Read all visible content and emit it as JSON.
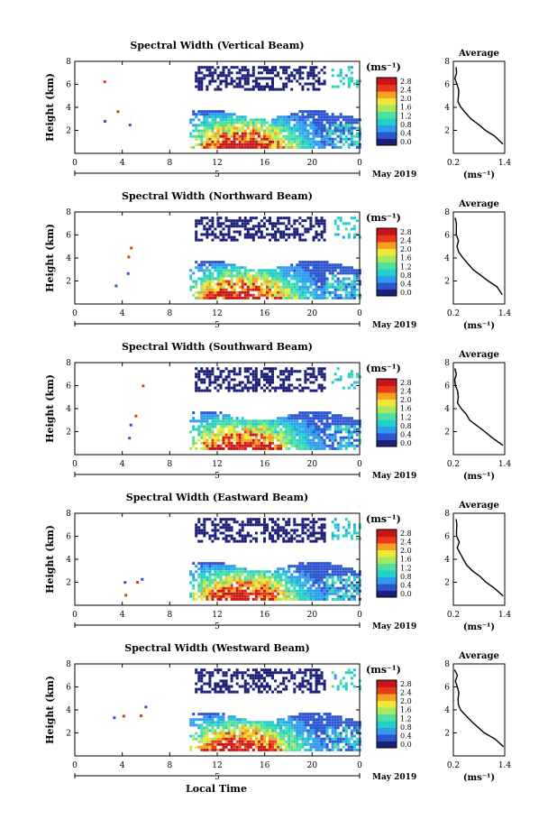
{
  "figure": {
    "date_label": "May 2019",
    "xlabel": "Local Time",
    "day_marker": "5",
    "colorbar_unit": "(ms⁻¹)",
    "colorbar_ticks": [
      "0.0",
      "0.4",
      "0.8",
      "1.2",
      "1.6",
      "2.0",
      "2.4",
      "2.8"
    ],
    "time_ticks": [
      "0",
      "4",
      "8",
      "12",
      "16",
      "20",
      "0"
    ],
    "colors": [
      "#1c1f7a",
      "#2d55d0",
      "#2f9cf0",
      "#22d0c8",
      "#4fe0a0",
      "#a8e860",
      "#f0e838",
      "#f8a020",
      "#e83a18",
      "#c81418"
    ]
  },
  "chart_data": [
    {
      "type": "heatmap",
      "title": "Spectral Width (Vertical Beam)",
      "xlabel": "",
      "ylabel": "Height (km)",
      "xlim": [
        0,
        24
      ],
      "ylim": [
        0,
        8
      ],
      "x_ticks": [
        "0",
        "4",
        "8",
        "12",
        "16",
        "20",
        "0"
      ],
      "y_ticks": [
        "2",
        "4",
        "6",
        "8"
      ],
      "colorbar_range": [
        0.0,
        2.8
      ],
      "average_profile": {
        "title": "Average",
        "xlabel": "(ms⁻¹)",
        "xlim": [
          0.2,
          1.4
        ],
        "x_ticks": [
          "0.2",
          "1.4"
        ],
        "y_ticks": [
          "2",
          "4",
          "6",
          "8"
        ],
        "height": [
          0.8,
          1.5,
          2.0,
          2.5,
          3.0,
          3.5,
          4.0,
          4.5,
          5.0,
          5.5,
          6.0,
          6.5,
          7.0,
          7.5
        ],
        "value": [
          1.38,
          1.15,
          0.95,
          0.78,
          0.62,
          0.5,
          0.4,
          0.33,
          0.3,
          0.32,
          0.28,
          0.25,
          0.3,
          0.25
        ]
      }
    },
    {
      "type": "heatmap",
      "title": "Spectral Width (Northward Beam)",
      "xlabel": "",
      "ylabel": "Height (km)",
      "xlim": [
        0,
        24
      ],
      "ylim": [
        0,
        8
      ],
      "x_ticks": [
        "0",
        "4",
        "8",
        "12",
        "16",
        "20",
        "0"
      ],
      "y_ticks": [
        "2",
        "4",
        "6",
        "8"
      ],
      "colorbar_range": [
        0.0,
        2.8
      ],
      "average_profile": {
        "title": "Average",
        "xlabel": "(ms⁻¹)",
        "xlim": [
          0.2,
          1.4
        ],
        "x_ticks": [
          "0.2",
          "1.4"
        ],
        "y_ticks": [
          "2",
          "4",
          "6",
          "8"
        ],
        "height": [
          0.8,
          1.5,
          2.0,
          2.5,
          3.0,
          3.5,
          4.0,
          4.5,
          5.0,
          5.5,
          6.0,
          6.5,
          7.0,
          7.5
        ],
        "value": [
          1.35,
          1.2,
          1.0,
          0.82,
          0.65,
          0.55,
          0.45,
          0.35,
          0.3,
          0.33,
          0.28,
          0.26,
          0.28,
          0.26
        ]
      }
    },
    {
      "type": "heatmap",
      "title": "Spectral Width (Southward Beam)",
      "xlabel": "",
      "ylabel": "Height (km)",
      "xlim": [
        0,
        24
      ],
      "ylim": [
        0,
        8
      ],
      "x_ticks": [
        "0",
        "4",
        "8",
        "12",
        "16",
        "20",
        "0"
      ],
      "y_ticks": [
        "2",
        "4",
        "6",
        "8"
      ],
      "colorbar_range": [
        0.0,
        2.8
      ],
      "average_profile": {
        "title": "Average",
        "xlabel": "(ms⁻¹)",
        "xlim": [
          0.2,
          1.4
        ],
        "x_ticks": [
          "0.2",
          "1.4"
        ],
        "y_ticks": [
          "2",
          "4",
          "6",
          "8"
        ],
        "height": [
          0.8,
          1.5,
          2.0,
          2.5,
          3.0,
          3.5,
          4.0,
          4.5,
          5.0,
          5.5,
          6.0,
          6.5,
          7.0,
          7.5
        ],
        "value": [
          1.36,
          1.12,
          0.92,
          0.75,
          0.6,
          0.48,
          0.38,
          0.32,
          0.3,
          0.31,
          0.27,
          0.25,
          0.29,
          0.25
        ]
      }
    },
    {
      "type": "heatmap",
      "title": "Spectral Width (Eastward Beam)",
      "xlabel": "",
      "ylabel": "Height (km)",
      "xlim": [
        0,
        24
      ],
      "ylim": [
        0,
        8
      ],
      "x_ticks": [
        "0",
        "4",
        "8",
        "12",
        "16",
        "20",
        "0"
      ],
      "y_ticks": [
        "2",
        "4",
        "6",
        "8"
      ],
      "colorbar_range": [
        0.0,
        2.8
      ],
      "average_profile": {
        "title": "Average",
        "xlabel": "(ms⁻¹)",
        "xlim": [
          0.2,
          1.4
        ],
        "x_ticks": [
          "0.2",
          "1.4"
        ],
        "y_ticks": [
          "2",
          "4",
          "6",
          "8"
        ],
        "height": [
          0.8,
          1.5,
          2.0,
          2.5,
          3.0,
          3.5,
          4.0,
          4.5,
          5.0,
          5.5,
          6.0,
          6.5,
          7.0,
          7.5
        ],
        "value": [
          1.37,
          1.18,
          0.97,
          0.8,
          0.63,
          0.52,
          0.42,
          0.34,
          0.3,
          0.32,
          0.28,
          0.26,
          0.3,
          0.26
        ]
      }
    },
    {
      "type": "heatmap",
      "title": "Spectral Width (Westward Beam)",
      "xlabel": "Local Time",
      "ylabel": "Height (km)",
      "xlim": [
        0,
        24
      ],
      "ylim": [
        0,
        8
      ],
      "x_ticks": [
        "0",
        "4",
        "8",
        "12",
        "16",
        "20",
        "0"
      ],
      "y_ticks": [
        "2",
        "4",
        "6",
        "8"
      ],
      "colorbar_range": [
        0.0,
        2.8
      ],
      "average_profile": {
        "title": "Average",
        "xlabel": "(ms⁻¹)",
        "xlim": [
          0.2,
          1.4
        ],
        "x_ticks": [
          "0.2",
          "1.4"
        ],
        "y_ticks": [
          "2",
          "4",
          "6",
          "8"
        ],
        "height": [
          0.8,
          1.5,
          2.0,
          2.5,
          3.0,
          3.5,
          4.0,
          4.5,
          5.0,
          5.5,
          6.0,
          6.5,
          7.0,
          7.5
        ],
        "value": [
          1.35,
          1.14,
          0.93,
          0.76,
          0.61,
          0.49,
          0.39,
          0.33,
          0.3,
          0.31,
          0.27,
          0.25,
          0.29,
          0.25
        ]
      }
    }
  ]
}
